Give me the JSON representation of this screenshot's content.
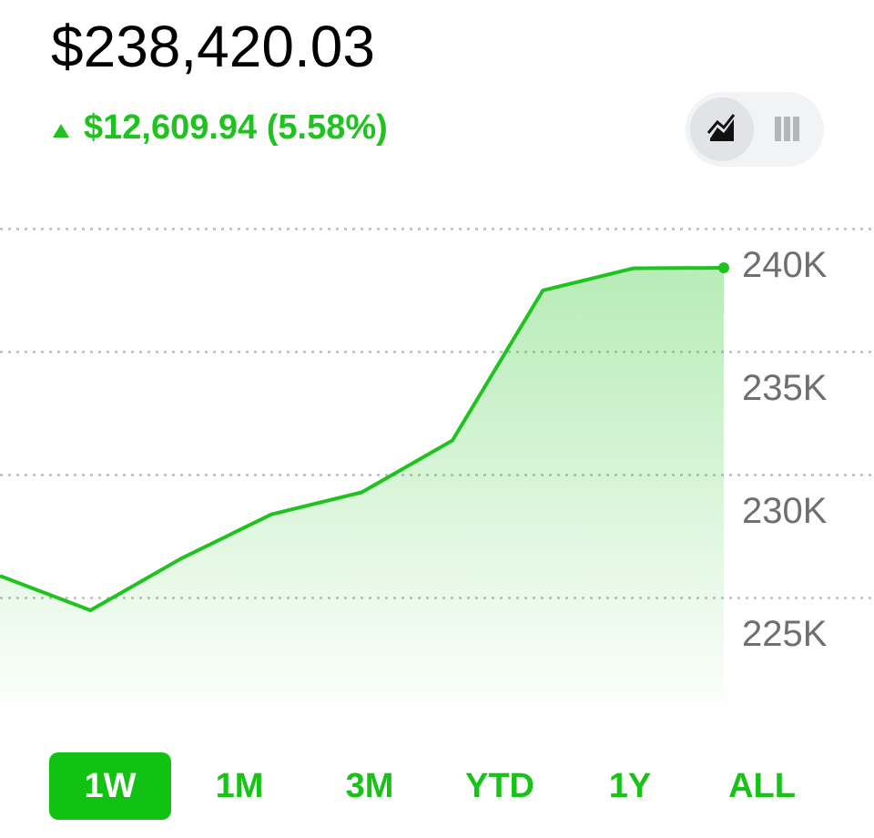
{
  "header": {
    "value": "$238,420.03",
    "change": "$12,609.94 (5.58%)"
  },
  "chart_data": {
    "type": "line",
    "categories": [
      null,
      null,
      null,
      null,
      null,
      null,
      null,
      null,
      null
    ],
    "series": [
      {
        "name": null,
        "color": "#1fc21f",
        "values": [
          225900,
          224500,
          226600,
          228400,
          229300,
          231400,
          237500,
          238400,
          238420
        ]
      }
    ],
    "ylim": [
      220800,
      241900
    ],
    "yticks": [
      {
        "value": 225000,
        "label": "225K"
      },
      {
        "value": 230000,
        "label": "230K"
      },
      {
        "value": 235000,
        "label": "235K"
      },
      {
        "value": 240000,
        "label": "240K"
      }
    ],
    "grid": true
  },
  "ranges": [
    "1W",
    "1M",
    "3M",
    "YTD",
    "1Y",
    "ALL"
  ]
}
